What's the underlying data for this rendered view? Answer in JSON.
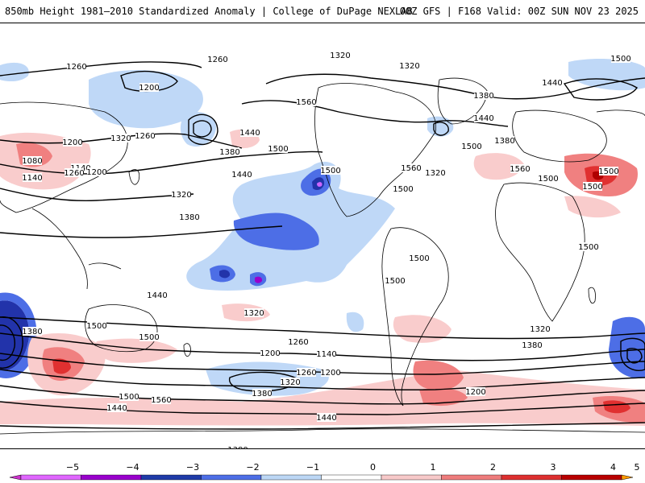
{
  "header": {
    "title_left": "850mb Height 1981–2010 Standardized Anomaly | College of DuPage NEXLAB",
    "title_right": "00Z GFS | F168 Valid: 00Z SUN NOV 23 2025"
  },
  "map": {
    "contour_labels": [
      "1320",
      "1260",
      "1200",
      "1260",
      "1320",
      "1380",
      "1440",
      "1500",
      "1560",
      "1500",
      "1440",
      "1380",
      "1320",
      "1260",
      "1200",
      "1140",
      "1080",
      "1140",
      "1200",
      "1260",
      "1320",
      "1380",
      "1440",
      "1500",
      "1560",
      "1500",
      "1320",
      "1380",
      "1440",
      "1500",
      "1560",
      "1500",
      "1500",
      "1500",
      "1500",
      "1500",
      "1500",
      "1440",
      "1500",
      "1500",
      "1380",
      "1320",
      "1260",
      "1200",
      "1140",
      "1200",
      "1260",
      "1320",
      "1380",
      "1440",
      "1500",
      "1560",
      "1440",
      "1380",
      "1200",
      "1320",
      "1380"
    ],
    "anomaly_colors": {
      "strong_negative": "#cc66ff",
      "neg4": "#9900cc",
      "neg3": "#2233aa",
      "neg2": "#4d6ee6",
      "neg1": "#bfd8f7",
      "pos1": "#f9cccc",
      "pos2": "#f08080",
      "pos3": "#e03030",
      "pos4": "#b00000"
    }
  },
  "colorbar": {
    "ticks": [
      "−5",
      "−4",
      "−3",
      "−2",
      "−1",
      "0",
      "1",
      "2",
      "3",
      "4",
      "5"
    ],
    "colors": [
      "#e066ff",
      "#9900cc",
      "#1f3ba8",
      "#4d6ee6",
      "#bcd7f5",
      "#ffffff",
      "#f7c9c9",
      "#ee7c7c",
      "#dd2f2f",
      "#b80000",
      "#ff9a00"
    ]
  }
}
